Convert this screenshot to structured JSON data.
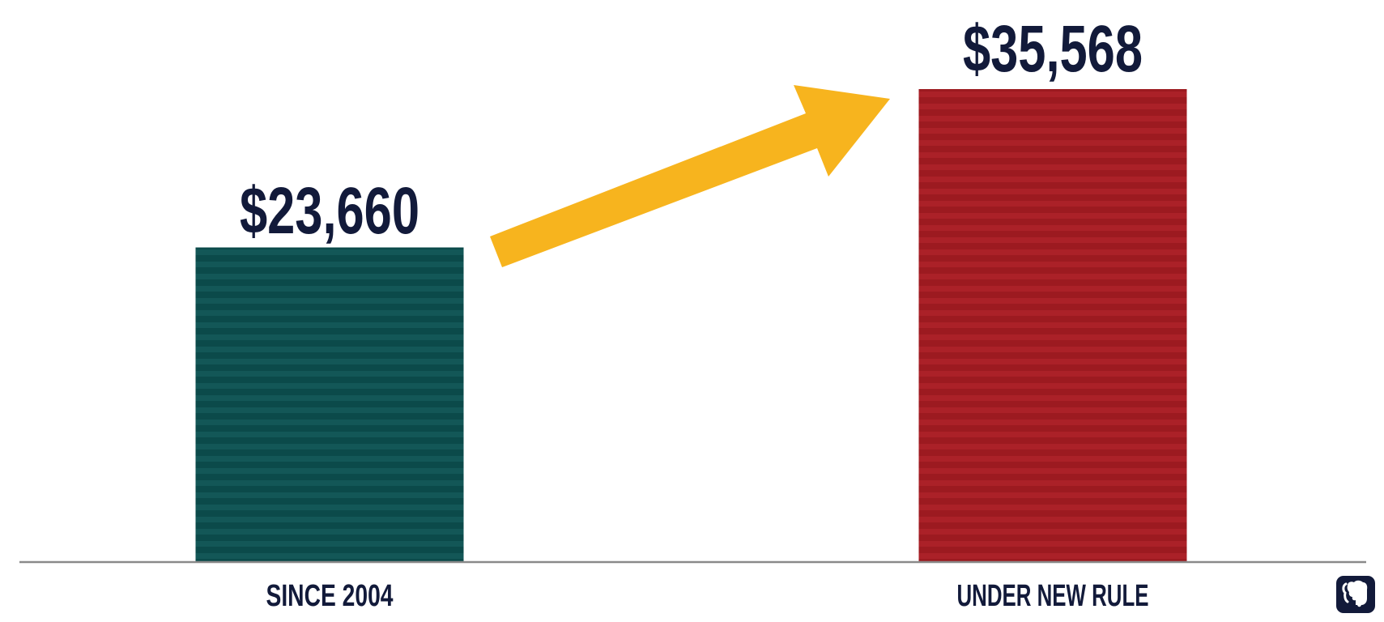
{
  "chart_data": {
    "type": "bar",
    "categories": [
      "SINCE 2004",
      "UNDER NEW RULE"
    ],
    "values": [
      23660,
      35568
    ],
    "value_labels": [
      "$23,660",
      "$35,568"
    ],
    "ylim": [
      0,
      35568
    ],
    "grid": false,
    "legend": "none",
    "colors": {
      "bar_1": "#0b4a4a",
      "bar_1_stripe": "#135757",
      "bar_2": "#9c1a20",
      "bar_2_stripe": "#ab2128",
      "arrow": "#f7b41e",
      "baseline": "#8a8a8a",
      "text": "#121a3a"
    },
    "annotation": "increase-arrow"
  },
  "logo": {
    "icon": "elephant-icon"
  }
}
